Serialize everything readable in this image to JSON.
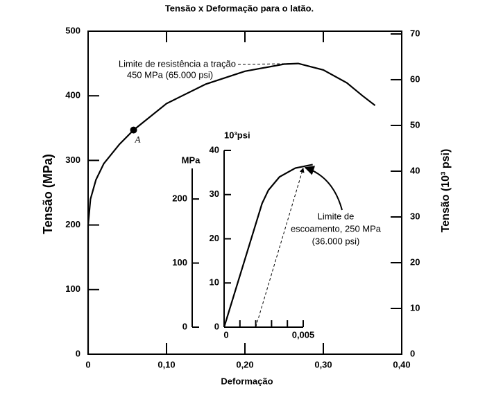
{
  "chart_data": [
    {
      "type": "line",
      "title": "Tensão x Deformação para o latão.",
      "xlabel": "Deformação",
      "ylabel": "Tensão (MPa)",
      "y2label": "Tensão (10³ psi)",
      "xlim": [
        0,
        0.4
      ],
      "xticks": [
        0,
        {
          "value": 0.1,
          "label": "0,10"
        },
        {
          "value": 0.2,
          "label": "0,20"
        },
        {
          "value": 0.3,
          "label": "0,30"
        },
        {
          "value": 0.4,
          "label": "0,40"
        }
      ],
      "ylim": [
        0,
        500
      ],
      "yticks": [
        0,
        100,
        200,
        300,
        400,
        500
      ],
      "y2lim": [
        0,
        70.6
      ],
      "y2ticks": [
        0,
        10,
        20,
        30,
        40,
        50,
        60,
        70
      ],
      "series": [
        {
          "color": "#000000",
          "x": [
            0,
            0,
            0.003,
            0.01,
            0.02,
            0.04,
            0.058,
            0.1,
            0.15,
            0.2,
            0.25,
            0.268,
            0.3,
            0.33,
            0.35,
            0.366
          ],
          "values": [
            0,
            200,
            240,
            270,
            295,
            325,
            347,
            388,
            418,
            438,
            449,
            450,
            440,
            420,
            400,
            385
          ]
        }
      ],
      "points": [
        {
          "label": "A",
          "x": 0.058,
          "y": 347
        }
      ],
      "annotations": [
        {
          "lines": [
            "Limite de resistência a tração",
            "450 MPa (65.000 psi)"
          ],
          "x": 0.268,
          "y": 450
        }
      ]
    },
    {
      "type": "line",
      "ylabel": "10³psi",
      "y2label": "MPa",
      "xlim": [
        0,
        0.005
      ],
      "xticks": [
        0,
        {
          "value": 0.005,
          "label": "0,005"
        }
      ],
      "xminor": [
        0.001,
        0.002,
        0.003,
        0.004
      ],
      "ylim": [
        0,
        40
      ],
      "yticks": [
        0,
        10,
        20,
        30,
        40
      ],
      "y2lim": [
        0,
        275.8
      ],
      "y2ticks": [
        0,
        100,
        200
      ],
      "series": [
        {
          "color": "#000000",
          "x": [
            0,
            0.0024,
            0.0028,
            0.0035,
            0.0045,
            0.0056
          ],
          "values": [
            0,
            28,
            31,
            34,
            36,
            36.8
          ]
        }
      ],
      "offset_line": {
        "x": [
          0.002,
          0.005
        ],
        "y": [
          0,
          36
        ]
      },
      "annotations": [
        {
          "lines": [
            "Limite de",
            "escoamento, 250 MPa",
            "(36.000 psi)"
          ],
          "x": 0.00513,
          "y": 36.1
        }
      ]
    }
  ]
}
